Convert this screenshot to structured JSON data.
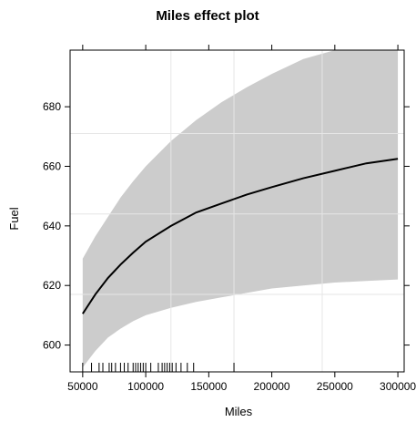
{
  "chart_data": {
    "type": "line",
    "title": "Miles effect plot",
    "xlabel": "Miles",
    "ylabel": "Fuel",
    "xlim": [
      40000,
      305000
    ],
    "ylim": [
      591,
      699
    ],
    "x_ticks": [
      {
        "value": 50000,
        "label": "50000"
      },
      {
        "value": 100000,
        "label": "100000"
      },
      {
        "value": 150000,
        "label": "150000"
      },
      {
        "value": 200000,
        "label": "200000"
      },
      {
        "value": 250000,
        "label": "250000"
      },
      {
        "value": 300000,
        "label": "300000"
      }
    ],
    "y_ticks": [
      {
        "value": 600,
        "label": "600"
      },
      {
        "value": 620,
        "label": "620"
      },
      {
        "value": 640,
        "label": "640"
      },
      {
        "value": 660,
        "label": "660"
      },
      {
        "value": 680,
        "label": "680"
      }
    ],
    "grid": true,
    "grid_x": [
      120000,
      170000,
      240000
    ],
    "grid_y": [
      617,
      644,
      671
    ],
    "series": [
      {
        "fit": [
          [
            50000,
            610.5
          ],
          [
            60000,
            617
          ],
          [
            70000,
            622.5
          ],
          [
            80000,
            627
          ],
          [
            90000,
            631
          ],
          [
            100000,
            634.7
          ],
          [
            120000,
            640
          ],
          [
            140000,
            644.5
          ],
          [
            160000,
            647.5
          ],
          [
            180000,
            650.5
          ],
          [
            200000,
            653
          ],
          [
            225000,
            656
          ],
          [
            250000,
            658.5
          ],
          [
            275000,
            661
          ],
          [
            300000,
            662.5
          ]
        ],
        "upper": [
          [
            50000,
            629
          ],
          [
            60000,
            636.5
          ],
          [
            70000,
            643
          ],
          [
            80000,
            649.5
          ],
          [
            90000,
            655
          ],
          [
            100000,
            660
          ],
          [
            120000,
            668.5
          ],
          [
            140000,
            675.5
          ],
          [
            160000,
            681.5
          ],
          [
            180000,
            686.5
          ],
          [
            200000,
            691
          ],
          [
            225000,
            696
          ],
          [
            250000,
            699
          ],
          [
            275000,
            699
          ],
          [
            300000,
            699
          ]
        ],
        "lower": [
          [
            50000,
            592.5
          ],
          [
            60000,
            598
          ],
          [
            70000,
            602.5
          ],
          [
            80000,
            605.5
          ],
          [
            90000,
            608
          ],
          [
            100000,
            610
          ],
          [
            120000,
            612.5
          ],
          [
            140000,
            614.5
          ],
          [
            160000,
            616
          ],
          [
            180000,
            617.5
          ],
          [
            200000,
            619
          ],
          [
            225000,
            620
          ],
          [
            250000,
            621
          ],
          [
            275000,
            621.5
          ],
          [
            300000,
            622
          ]
        ]
      }
    ],
    "rug_x": [
      50000,
      57000,
      63000,
      66000,
      71000,
      73000,
      76000,
      80000,
      83000,
      86000,
      90000,
      92000,
      94000,
      96000,
      98000,
      100000,
      104000,
      110000,
      113000,
      115000,
      117000,
      119000,
      121000,
      124000,
      128000,
      133000,
      138000,
      170000
    ],
    "colors": {
      "band": "#cccccc",
      "line": "#000000",
      "grid": "#e6e6e6",
      "frame": "#000000"
    }
  }
}
